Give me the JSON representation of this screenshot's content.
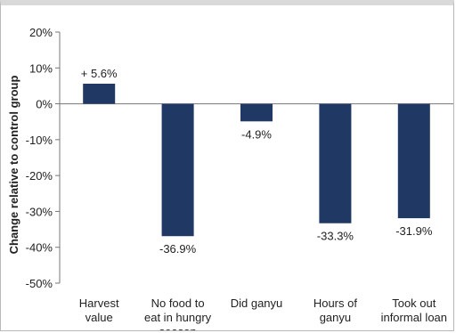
{
  "chart_data": {
    "type": "bar",
    "title": "",
    "xlabel": "",
    "ylabel": "Change relative to control group",
    "ylim": [
      -50,
      20
    ],
    "yticks": [
      20,
      10,
      0,
      -10,
      -20,
      -30,
      -40,
      -50
    ],
    "ytick_labels": [
      "20%",
      "10%",
      "0%",
      "-10%",
      "-20%",
      "-30%",
      "-40%",
      "-50%"
    ],
    "categories": [
      [
        "Harvest",
        "value"
      ],
      [
        "No food to",
        "eat in hungry",
        "season"
      ],
      [
        "Did ganyu"
      ],
      [
        "Hours of",
        "ganyu"
      ],
      [
        "Took out",
        "informal loan"
      ]
    ],
    "values": [
      5.6,
      -36.9,
      -4.9,
      -33.3,
      -31.9
    ],
    "data_labels": [
      "+ 5.6%",
      "-36.9%",
      "-4.9%",
      "-33.3%",
      "-31.9%"
    ],
    "bar_color": "#1f3864",
    "grid": false,
    "legend": "none"
  }
}
